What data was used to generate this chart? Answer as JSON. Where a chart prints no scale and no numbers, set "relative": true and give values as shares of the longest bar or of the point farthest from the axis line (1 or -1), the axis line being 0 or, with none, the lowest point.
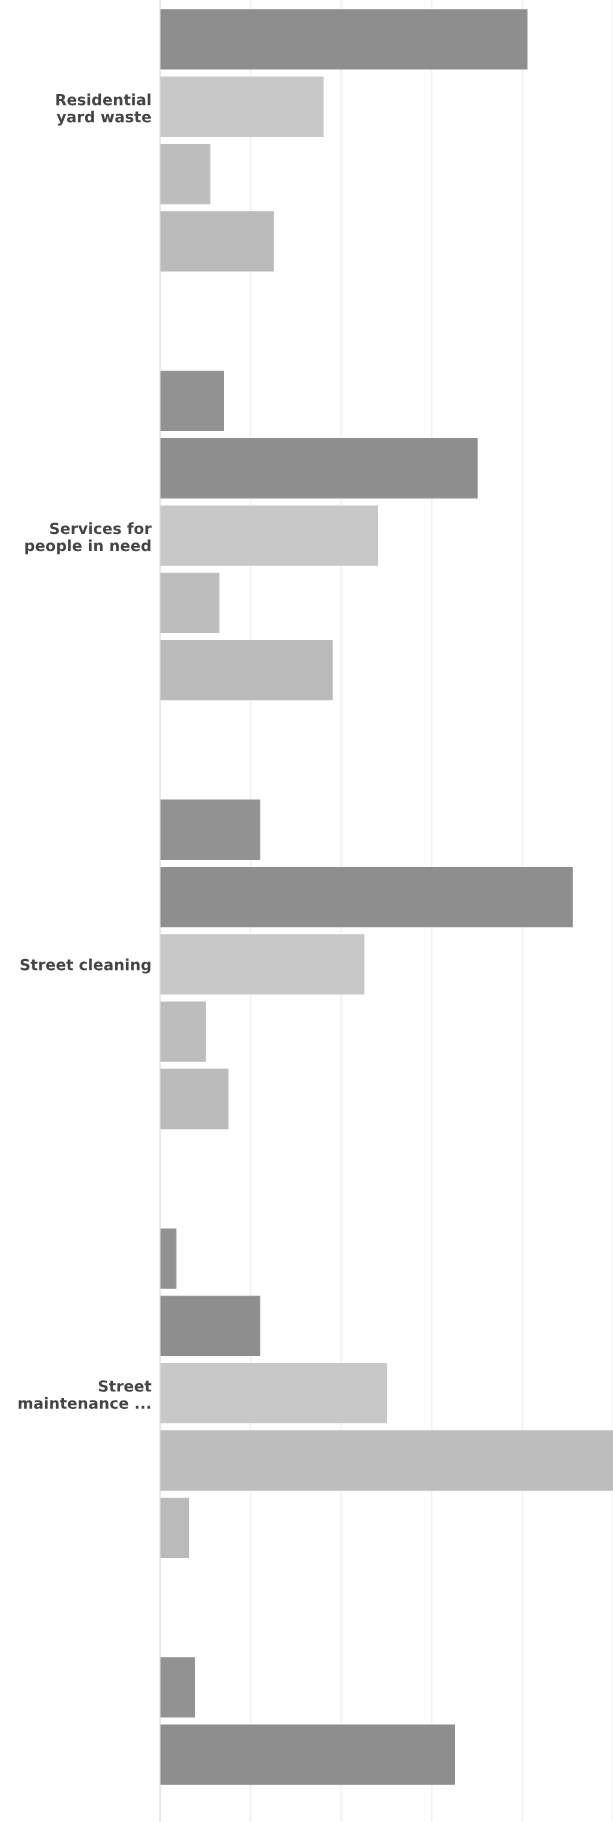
{
  "chart_data": {
    "type": "bar",
    "orientation": "horizontal",
    "relative": true,
    "grid": "x",
    "legend": false,
    "categories": [
      "Residential\nyard waste",
      "Services for\npeople in need",
      "Street cleaning",
      "Street\nmaintenance ...",
      null
    ],
    "series": [
      {
        "color": "#929292",
        "values": [
          null,
          0.14,
          0.22,
          0.035,
          0.076
        ]
      },
      {
        "color": "#8e8e8e",
        "values": [
          0.81,
          0.7,
          0.91,
          0.22,
          0.65
        ]
      },
      {
        "color": "#c8c8c8",
        "values": [
          0.36,
          0.48,
          0.45,
          0.5,
          null
        ]
      },
      {
        "color": "#bdbdbd",
        "values": [
          0.11,
          0.13,
          0.1,
          1.0,
          null
        ]
      },
      {
        "color": "#bababa",
        "values": [
          0.25,
          0.38,
          0.15,
          0.063,
          null
        ]
      }
    ]
  }
}
